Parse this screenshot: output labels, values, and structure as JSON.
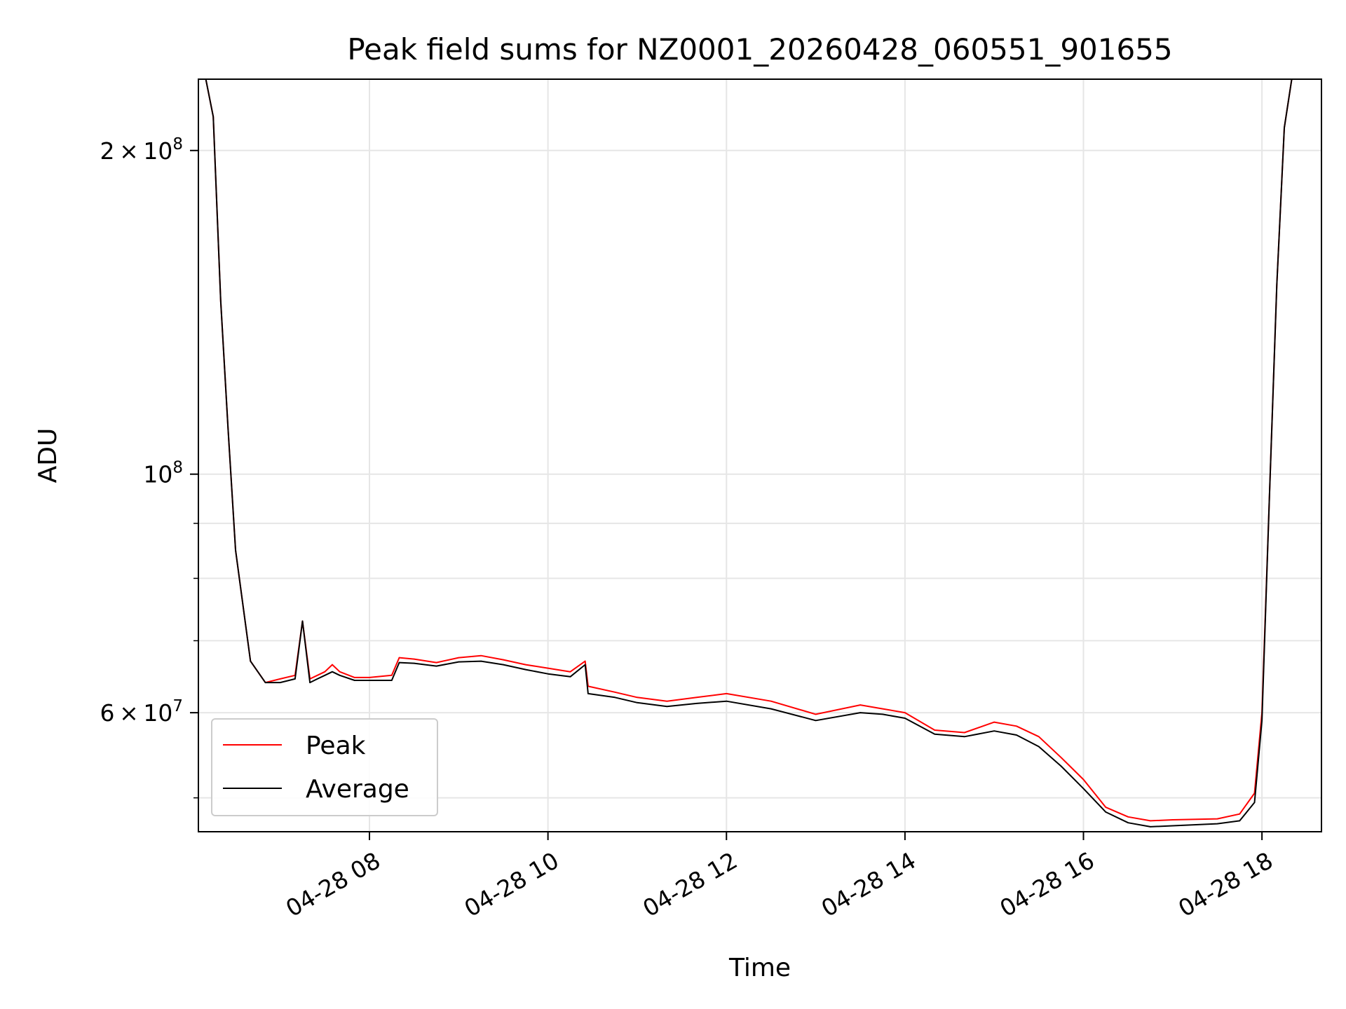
{
  "chart_data": {
    "type": "line",
    "title": "Peak field sums for NZ0001_20260428_060551_901655",
    "xlabel": "Time",
    "ylabel": "ADU",
    "y_scale": "log",
    "grid": true,
    "legend_position": "lower-left",
    "xlim": [
      "2026-04-28 06:05",
      "2026-04-28 18:40"
    ],
    "ylim": [
      46500000,
      233000000
    ],
    "x_ticks": [
      "2026-04-28 08:00",
      "2026-04-28 10:00",
      "2026-04-28 12:00",
      "2026-04-28 14:00",
      "2026-04-28 16:00",
      "2026-04-28 18:00"
    ],
    "x_tick_labels": [
      "04-28 08",
      "04-28 10",
      "04-28 12",
      "04-28 14",
      "04-28 16",
      "04-28 18"
    ],
    "y_ticks": [
      200000000,
      100000000,
      60000000
    ],
    "y_tick_labels": [
      {
        "mantissa": "2",
        "exp": "8"
      },
      {
        "mantissa": "",
        "exp": "8"
      },
      {
        "mantissa": "6",
        "exp": "7"
      }
    ],
    "y_minor_ticks": [
      50000000,
      70000000,
      80000000,
      90000000
    ],
    "x": [
      "2026-04-28 06:10",
      "2026-04-28 06:15",
      "2026-04-28 06:20",
      "2026-04-28 06:25",
      "2026-04-28 06:30",
      "2026-04-28 06:40",
      "2026-04-28 06:50",
      "2026-04-28 07:00",
      "2026-04-28 07:10",
      "2026-04-28 07:15",
      "2026-04-28 07:20",
      "2026-04-28 07:25",
      "2026-04-28 07:30",
      "2026-04-28 07:35",
      "2026-04-28 07:40",
      "2026-04-28 07:50",
      "2026-04-28 08:00",
      "2026-04-28 08:15",
      "2026-04-28 08:20",
      "2026-04-28 08:30",
      "2026-04-28 08:45",
      "2026-04-28 09:00",
      "2026-04-28 09:15",
      "2026-04-28 09:30",
      "2026-04-28 09:45",
      "2026-04-28 10:00",
      "2026-04-28 10:15",
      "2026-04-28 10:25",
      "2026-04-28 10:27",
      "2026-04-28 10:45",
      "2026-04-28 11:00",
      "2026-04-28 11:20",
      "2026-04-28 11:40",
      "2026-04-28 12:00",
      "2026-04-28 12:30",
      "2026-04-28 13:00",
      "2026-04-28 13:30",
      "2026-04-28 13:45",
      "2026-04-28 14:00",
      "2026-04-28 14:20",
      "2026-04-28 14:40",
      "2026-04-28 15:00",
      "2026-04-28 15:15",
      "2026-04-28 15:30",
      "2026-04-28 15:45",
      "2026-04-28 16:00",
      "2026-04-28 16:15",
      "2026-04-28 16:30",
      "2026-04-28 16:45",
      "2026-04-28 17:00",
      "2026-04-28 17:30",
      "2026-04-28 17:45",
      "2026-04-28 17:55",
      "2026-04-28 18:00",
      "2026-04-28 18:05",
      "2026-04-28 18:10",
      "2026-04-28 18:15",
      "2026-04-28 18:20",
      "2026-04-28 18:25",
      "2026-04-28 18:30"
    ],
    "series": [
      {
        "name": "Peak",
        "color": "#ff0000",
        "values": [
          233000000,
          215000000,
          145000000,
          110000000,
          85000000,
          67000000,
          64000000,
          64500000,
          65000000,
          73000000,
          64500000,
          65000000,
          65500000,
          66500000,
          65500000,
          64700000,
          64700000,
          65000000,
          67500000,
          67300000,
          66800000,
          67500000,
          67800000,
          67200000,
          66500000,
          66000000,
          65500000,
          67000000,
          63500000,
          62700000,
          62000000,
          61500000,
          62000000,
          62500000,
          61500000,
          59800000,
          61000000,
          60500000,
          60000000,
          57800000,
          57500000,
          58800000,
          58300000,
          57000000,
          54500000,
          52000000,
          49000000,
          48000000,
          47600000,
          47700000,
          47800000,
          48300000,
          50500000,
          60000000,
          95000000,
          150000000,
          210000000,
          233000000,
          233000000,
          233000000
        ]
      },
      {
        "name": "Average",
        "color": "#000000",
        "values": [
          233000000,
          215000000,
          145000000,
          110000000,
          85000000,
          67000000,
          64000000,
          64000000,
          64500000,
          73000000,
          64000000,
          64500000,
          65000000,
          65500000,
          65000000,
          64300000,
          64300000,
          64300000,
          66800000,
          66700000,
          66300000,
          66900000,
          67000000,
          66500000,
          65800000,
          65200000,
          64800000,
          66500000,
          62500000,
          62000000,
          61300000,
          60800000,
          61200000,
          61500000,
          60500000,
          59000000,
          60000000,
          59800000,
          59300000,
          57300000,
          57000000,
          57700000,
          57200000,
          55800000,
          53500000,
          51000000,
          48500000,
          47400000,
          47000000,
          47100000,
          47300000,
          47600000,
          49500000,
          59000000,
          95000000,
          150000000,
          210000000,
          233000000,
          233000000,
          233000000
        ]
      }
    ]
  }
}
